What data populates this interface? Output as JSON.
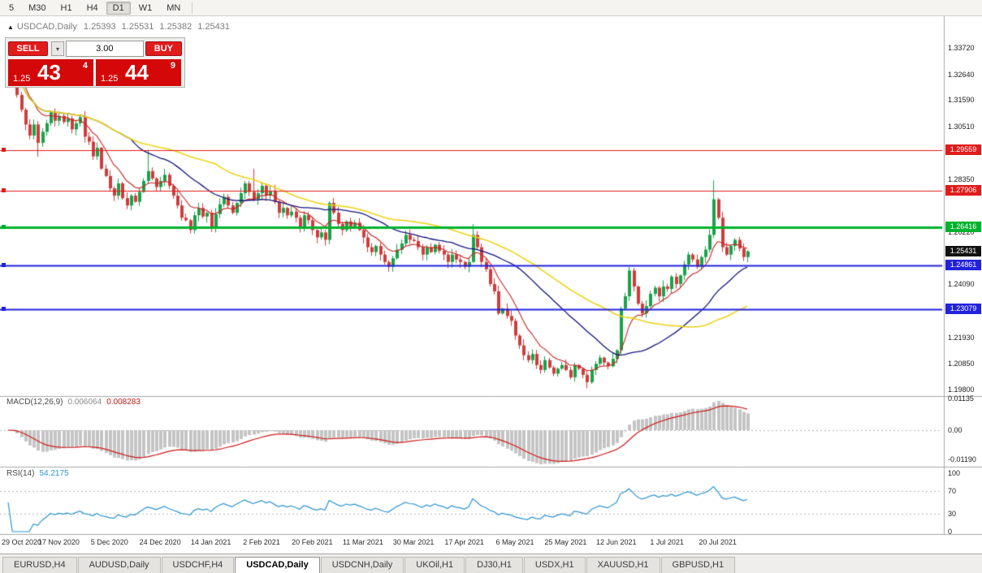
{
  "toolbar": {
    "timeframes": [
      "5",
      "M30",
      "H1",
      "H4",
      "D1",
      "W1",
      "MN"
    ],
    "active": "D1"
  },
  "chart": {
    "collapse_icon": "▲",
    "symbol": "USDCAD,Daily",
    "open": "1.25393",
    "high": "1.25531",
    "low": "1.25382",
    "close": "1.25431"
  },
  "trade_panel": {
    "sell_label": "SELL",
    "buy_label": "BUY",
    "volume": "3.00",
    "dropdown_icon": "▾",
    "bid": {
      "small": "1.25",
      "big": "43",
      "sup": "4"
    },
    "ask": {
      "small": "1.25",
      "big": "44",
      "sup": "9"
    }
  },
  "price_axis": {
    "ticks": [
      {
        "label": "1.33720",
        "price": 1.3372
      },
      {
        "label": "1.32640",
        "price": 1.3264
      },
      {
        "label": "1.31590",
        "price": 1.3159
      },
      {
        "label": "1.30510",
        "price": 1.3051
      },
      {
        "label": "1.28350",
        "price": 1.2835
      },
      {
        "label": "1.26220",
        "price": 1.2622
      },
      {
        "label": "1.24090",
        "price": 1.2409
      },
      {
        "label": "1.21930",
        "price": 1.2193
      },
      {
        "label": "1.20850",
        "price": 1.2085
      },
      {
        "label": "1.19800",
        "price": 1.198
      }
    ],
    "badges": [
      {
        "label": "1.29559",
        "price": 1.29559,
        "color": "#e21b1b"
      },
      {
        "label": "1.27906",
        "price": 1.27906,
        "color": "#e21b1b"
      },
      {
        "label": "1.26416",
        "price": 1.26416,
        "color": "#00b22d"
      },
      {
        "label": "1.25431",
        "price": 1.25431,
        "color": "#111111"
      },
      {
        "label": "1.24861",
        "price": 1.24861,
        "color": "#2222dd"
      },
      {
        "label": "1.23079",
        "price": 1.23079,
        "color": "#2222dd"
      }
    ]
  },
  "hlines": [
    {
      "price": 1.29559,
      "color": "#e21b1b",
      "width": 1
    },
    {
      "price": 1.27906,
      "color": "#e21b1b",
      "width": 1
    },
    {
      "price": 1.26416,
      "color": "#00b22d",
      "width": 3
    },
    {
      "price": 1.24861,
      "color": "#2222dd",
      "width": 2
    },
    {
      "price": 1.23079,
      "color": "#2222dd",
      "width": 2
    }
  ],
  "date_axis": [
    {
      "text": "29 Oct 2020",
      "bar": 0
    },
    {
      "text": "17 Nov 2020",
      "bar": 12
    },
    {
      "text": "5 Dec 2020",
      "bar": 24
    },
    {
      "text": "24 Dec 2020",
      "bar": 36
    },
    {
      "text": "14 Jan 2021",
      "bar": 48
    },
    {
      "text": "2 Feb 2021",
      "bar": 60
    },
    {
      "text": "20 Feb 2021",
      "bar": 72
    },
    {
      "text": "11 Mar 2021",
      "bar": 84
    },
    {
      "text": "30 Mar 2021",
      "bar": 96
    },
    {
      "text": "17 Apr 2021",
      "bar": 108
    },
    {
      "text": "6 May 2021",
      "bar": 120
    },
    {
      "text": "25 May 2021",
      "bar": 132
    },
    {
      "text": "12 Jun 2021",
      "bar": 144
    },
    {
      "text": "1 Jul 2021",
      "bar": 156
    },
    {
      "text": "20 Jul 2021",
      "bar": 168
    }
  ],
  "indicators": {
    "macd": {
      "name": "MACD(12,26,9)",
      "main": "0.006064",
      "signal_value": "0.008283",
      "fast": 12,
      "slow": 26,
      "signal": 9,
      "hist_color": "#c4c4c4",
      "signal_color": "#d01818",
      "axis": [
        {
          "label": "0.01135",
          "value": 0.01135
        },
        {
          "label": "0.00",
          "value": 0
        },
        {
          "label": "-0.01190",
          "value": -0.0119
        }
      ]
    },
    "rsi": {
      "name": "RSI(14)",
      "value": "54.2175",
      "period": 14,
      "color": "#2e95d3",
      "levels": [
        70,
        30
      ],
      "axis": [
        {
          "label": "100",
          "value": 100
        },
        {
          "label": "70",
          "value": 70
        },
        {
          "label": "30",
          "value": 30
        },
        {
          "label": "0",
          "value": 0
        }
      ]
    }
  },
  "tabs": [
    {
      "label": "EURUSD,H4",
      "active": false
    },
    {
      "label": "AUDUSD,Daily",
      "active": false
    },
    {
      "label": "USDCHF,H4",
      "active": false
    },
    {
      "label": "USDCAD,Daily",
      "active": true
    },
    {
      "label": "USDCNH,Daily",
      "active": false
    },
    {
      "label": "UKOil,H1",
      "active": false
    },
    {
      "label": "DJ30,H1",
      "active": false
    },
    {
      "label": "USDX,H1",
      "active": false
    },
    {
      "label": "XAUUSD,H1",
      "active": false
    },
    {
      "label": "GBPUSD,H1",
      "active": false
    }
  ],
  "chart_data": {
    "type": "candlestick",
    "symbol": "USDCAD",
    "timeframe": "Daily",
    "x_range": [
      "29 Oct 2020",
      "28 Jul 2021"
    ],
    "y_range": [
      1.198,
      1.3372
    ],
    "first_open": 1.325,
    "up_color": "#1aa24a",
    "down_color": "#cf3d3d",
    "closes": [
      1.332,
      1.3305,
      1.318,
      1.312,
      1.306,
      1.3015,
      1.306,
      1.2985,
      1.303,
      1.3065,
      1.311,
      1.3075,
      1.3095,
      1.307,
      1.3085,
      1.304,
      1.3065,
      1.309,
      1.301,
      1.299,
      1.293,
      1.2965,
      1.288,
      1.285,
      1.28,
      1.277,
      1.282,
      1.276,
      1.273,
      1.277,
      1.2745,
      1.2785,
      1.283,
      1.287,
      1.284,
      1.2805,
      1.283,
      1.2855,
      1.281,
      1.277,
      1.273,
      1.268,
      1.267,
      1.263,
      1.269,
      1.272,
      1.2685,
      1.27,
      1.264,
      1.2695,
      1.2735,
      1.2765,
      1.273,
      1.27,
      1.274,
      1.278,
      1.282,
      1.2785,
      1.2755,
      1.278,
      1.281,
      1.277,
      1.279,
      1.2745,
      1.27,
      1.272,
      1.269,
      1.2705,
      1.268,
      1.264,
      1.269,
      1.267,
      1.263,
      1.26,
      1.262,
      1.259,
      1.274,
      1.27,
      1.2655,
      1.263,
      1.2665,
      1.2645,
      1.266,
      1.263,
      1.26,
      1.256,
      1.254,
      1.2565,
      1.253,
      1.25,
      1.248,
      1.2515,
      1.255,
      1.2575,
      1.261,
      1.259,
      1.2585,
      1.256,
      1.253,
      1.256,
      1.254,
      1.257,
      1.2545,
      1.253,
      1.25,
      1.253,
      1.251,
      1.25,
      1.248,
      1.25,
      1.261,
      1.256,
      1.25,
      1.247,
      1.241,
      1.238,
      1.229,
      1.231,
      1.228,
      1.226,
      1.22,
      1.216,
      1.212,
      1.21,
      1.2125,
      1.208,
      1.206,
      1.21,
      1.207,
      1.2045,
      1.2065,
      1.208,
      1.206,
      1.203,
      1.208,
      1.2065,
      1.204,
      1.201,
      1.206,
      1.2085,
      1.211,
      1.209,
      1.2075,
      1.2105,
      1.214,
      1.231,
      1.236,
      1.2465,
      1.24,
      1.233,
      1.229,
      1.232,
      1.237,
      1.2395,
      1.236,
      1.24,
      1.239,
      1.244,
      1.241,
      1.2445,
      1.249,
      1.253,
      1.251,
      1.248,
      1.252,
      1.255,
      1.261,
      1.2755,
      1.268,
      1.256,
      1.253,
      1.2565,
      1.259,
      1.2555,
      1.252,
      1.25431
    ],
    "wick_overrides": {
      "0": {
        "high": 1.3355
      },
      "7": {
        "low": 1.2928
      },
      "33": {
        "high": 1.2957
      },
      "58": {
        "high": 1.288
      },
      "76": {
        "high": 1.2748
      },
      "110": {
        "high": 1.2654
      },
      "137": {
        "low": 1.1985
      },
      "147": {
        "high": 1.248
      },
      "167": {
        "high": 1.2832
      }
    },
    "moving_averages": [
      {
        "type": "ema",
        "period": 9,
        "color": "#cc2222",
        "width": 1.1
      },
      {
        "type": "sma",
        "period": 30,
        "color": "#15157e",
        "width": 1.3
      },
      {
        "type": "sma",
        "period": 50,
        "color": "#ecd418",
        "width": 1.6
      }
    ]
  }
}
